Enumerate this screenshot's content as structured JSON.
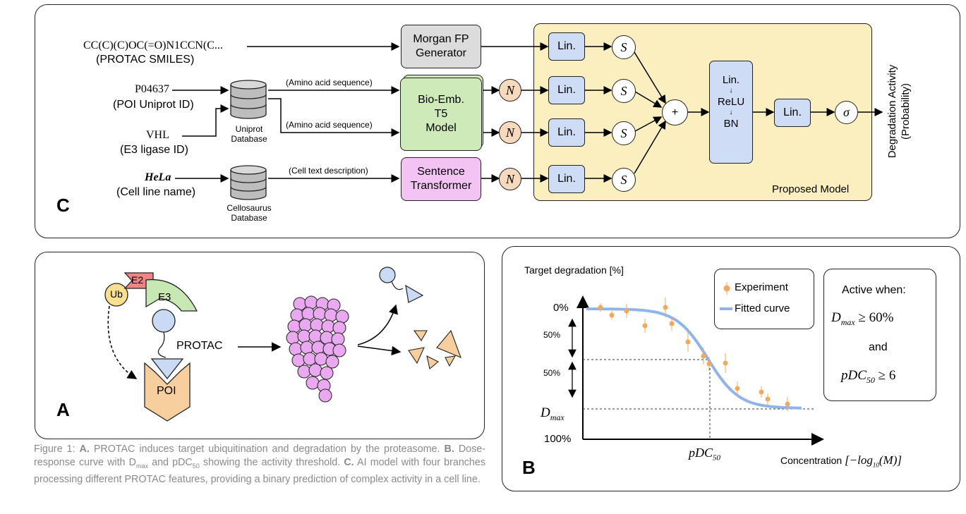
{
  "panel_c": {
    "letter": "C",
    "smiles": "CC(C)(C)OC(=O)N1CCN(C...",
    "smiles_label": "(PROTAC SMILES)",
    "poi_id": "P04637",
    "poi_label": "(POI Uniprot ID)",
    "e3_id": "VHL",
    "e3_label": "(E3 ligase ID)",
    "cell": "HeLa",
    "cell_label": "(Cell line name)",
    "uniprot_db": "Uniprot\nDatabase",
    "cellosaurus_db": "Cellosaurus\nDatabase",
    "edge_aa1": "(Amino acid sequence)",
    "edge_aa2": "(Amino acid sequence)",
    "edge_cell": "(Cell text description)",
    "morgan": "Morgan FP\nGenerator",
    "bioemb": "Bio-Emb.\nT5\nModel",
    "sentence": "Sentence\nTransformer",
    "n_symbol": "N",
    "s_symbol": "S",
    "lin": "Lin.",
    "plus": "+",
    "stack_lin": "Lin.",
    "stack_relu": "ReLU",
    "stack_bn": "BN",
    "stack_arrow": "↓",
    "lin_final": "Lin.",
    "sigma": "σ",
    "proposed": "Proposed Model",
    "output_label": "Degradation Activity\n(Probability)"
  },
  "panel_a": {
    "letter": "A",
    "ub": "Ub",
    "e2": "E2",
    "e3": "E3",
    "protac": "PROTAC",
    "poi": "POI"
  },
  "panel_b": {
    "letter": "B",
    "y_title": "Target degradation [%]",
    "tick_0": "0%",
    "tick_50a": "50%",
    "tick_50b": "50%",
    "tick_dmax": "D",
    "tick_dmax_sub": "max",
    "tick_100": "100%",
    "x_marker": "pDC",
    "x_marker_sub": "50",
    "x_title": "Concentration ",
    "x_title_math": "[−log",
    "x_title_math_sub": "10",
    "x_title_math_end": "(M)]",
    "legend_experiment": "Experiment",
    "legend_fitted": "Fitted curve",
    "active_title": "Active when:",
    "cond1_a": "D",
    "cond1_sub": "max",
    "cond1_b": " ≥ 60%",
    "and": "and",
    "cond2_a": "pDC",
    "cond2_sub": "50",
    "cond2_b": " ≥ 6",
    "colors": {
      "points": "#f0a95a",
      "curve": "#8fb4ea"
    }
  },
  "caption": {
    "a_label": "A.",
    "a_text": " PROTAC induces target ubiquitination and degradation by the proteasome. ",
    "b_label": "B.",
    "b_text1": " Dose-response curve with D",
    "b_sub1": "max",
    "b_text2": " and pDC",
    "b_sub2": "50",
    "b_text3": " showing the activity threshold. ",
    "c_label": "C.",
    "c_text": " AI model with four branches processing different PROTAC features, providing a binary prediction of complex activity in a cell line."
  }
}
